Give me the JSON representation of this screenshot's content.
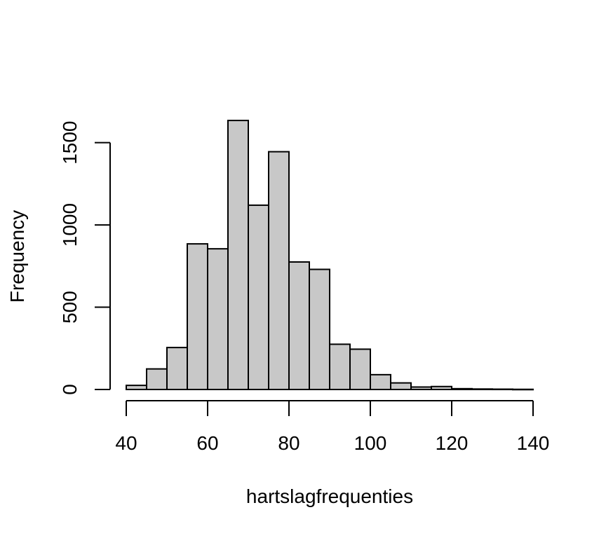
{
  "chart_data": {
    "type": "bar",
    "title": "",
    "xlabel": "hartslagfrequenties",
    "ylabel": "Frequency",
    "bin_edges": [
      40,
      45,
      50,
      55,
      60,
      65,
      70,
      75,
      80,
      85,
      90,
      95,
      100,
      105,
      110,
      115,
      120,
      125,
      130,
      135,
      140
    ],
    "values": [
      25,
      125,
      255,
      885,
      855,
      1635,
      1120,
      1445,
      775,
      730,
      275,
      245,
      90,
      40,
      15,
      18,
      5,
      3,
      2,
      1
    ],
    "x_ticks": [
      40,
      60,
      80,
      100,
      120,
      140
    ],
    "y_ticks": [
      0,
      500,
      1000,
      1500
    ],
    "xlim": [
      40,
      140
    ],
    "ylim": [
      0,
      1635
    ],
    "grid": false,
    "colors": {
      "bar_fill": "#c8c8c8",
      "bar_stroke": "#000000"
    }
  }
}
